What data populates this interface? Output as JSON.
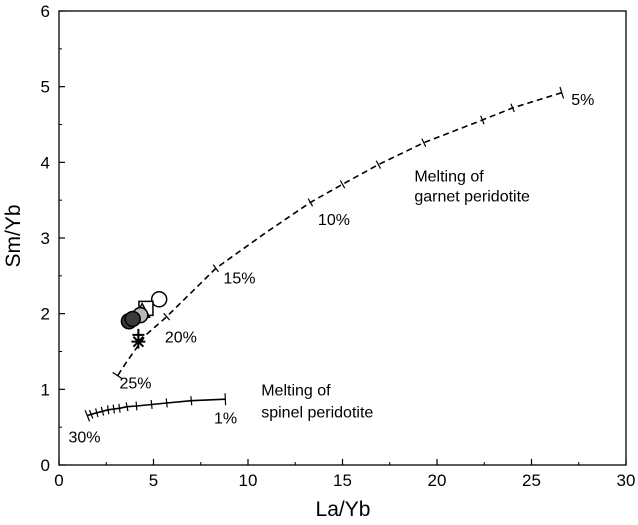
{
  "chart_data": {
    "type": "scatter",
    "title": "",
    "xlabel": "La/Yb",
    "ylabel": "Sm/Yb",
    "xlim": [
      0,
      30
    ],
    "ylim": [
      0,
      6
    ],
    "xticks": [
      "0",
      "5",
      "10",
      "15",
      "20",
      "25",
      "30"
    ],
    "yticks": [
      "0",
      "1",
      "2",
      "3",
      "4",
      "5",
      "6"
    ],
    "grid": false,
    "legend": "none",
    "curves": [
      {
        "id": "garnet",
        "style": "dashed",
        "color": "#000000",
        "points": [
          [
            26.6,
            4.92
          ],
          [
            24.0,
            4.72
          ],
          [
            22.4,
            4.56
          ],
          [
            19.3,
            4.26
          ],
          [
            16.9,
            3.97
          ],
          [
            15.0,
            3.71
          ],
          [
            13.3,
            3.47
          ],
          [
            11.0,
            3.08
          ],
          [
            8.3,
            2.6
          ],
          [
            5.7,
            1.96
          ],
          [
            4.6,
            1.72
          ],
          [
            3.6,
            1.37
          ],
          [
            3.1,
            1.18
          ]
        ],
        "ticks_at": [
          [
            24.0,
            4.72
          ],
          [
            22.4,
            4.56
          ],
          [
            19.3,
            4.26
          ],
          [
            16.9,
            3.97
          ],
          [
            15.0,
            3.71
          ],
          [
            13.3,
            3.47
          ],
          [
            8.3,
            2.6
          ],
          [
            5.7,
            1.96
          ]
        ],
        "end_ticks": [
          [
            26.6,
            4.92
          ],
          [
            3.1,
            1.18
          ]
        ]
      },
      {
        "id": "spinel",
        "style": "solid",
        "color": "#000000",
        "points": [
          [
            8.8,
            0.87
          ],
          [
            7.0,
            0.85
          ],
          [
            5.7,
            0.82
          ],
          [
            4.9,
            0.8
          ],
          [
            4.1,
            0.78
          ],
          [
            3.6,
            0.77
          ],
          [
            3.2,
            0.75
          ],
          [
            2.9,
            0.74
          ],
          [
            2.6,
            0.73
          ],
          [
            2.3,
            0.71
          ],
          [
            2.0,
            0.69
          ],
          [
            1.7,
            0.67
          ],
          [
            1.5,
            0.65
          ]
        ],
        "ticks_at": [
          [
            7.0,
            0.85
          ],
          [
            5.7,
            0.82
          ],
          [
            4.9,
            0.8
          ],
          [
            4.1,
            0.78
          ],
          [
            3.6,
            0.77
          ],
          [
            3.2,
            0.75
          ],
          [
            2.9,
            0.74
          ],
          [
            2.6,
            0.73
          ],
          [
            2.3,
            0.71
          ],
          [
            2.0,
            0.69
          ],
          [
            1.7,
            0.67
          ]
        ],
        "end_ticks": [
          [
            8.8,
            0.87
          ],
          [
            1.5,
            0.65
          ]
        ]
      }
    ],
    "annotations": [
      {
        "text": "5%",
        "x": 27.1,
        "y": 4.76
      },
      {
        "text": "10%",
        "x": 13.7,
        "y": 3.17
      },
      {
        "text": "15%",
        "x": 8.7,
        "y": 2.4
      },
      {
        "text": "20%",
        "x": 5.6,
        "y": 1.62
      },
      {
        "text": "25%",
        "x": 3.2,
        "y": 1.01
      },
      {
        "text": "1%",
        "x": 8.2,
        "y": 0.55
      },
      {
        "text": "30%",
        "x": 0.5,
        "y": 0.3
      },
      {
        "text": "Melting of",
        "x": 18.8,
        "y": 3.75
      },
      {
        "text": "garnet peridotite",
        "x": 18.8,
        "y": 3.48
      },
      {
        "text": "Melting of",
        "x": 10.7,
        "y": 0.92
      },
      {
        "text": "spinel peridotite",
        "x": 10.7,
        "y": 0.63
      }
    ],
    "series": [
      {
        "marker": "circle",
        "fill": "#ffffff",
        "points": [
          [
            5.3,
            2.19
          ]
        ]
      },
      {
        "marker": "square",
        "fill": "#ffffff",
        "points": [
          [
            4.6,
            2.07
          ]
        ]
      },
      {
        "marker": "triangle",
        "fill": "#b0b0b0",
        "points": [
          [
            4.4,
            2.03
          ]
        ]
      },
      {
        "marker": "circle",
        "fill": "#b8b8b8",
        "points": [
          [
            4.3,
            1.98
          ]
        ]
      },
      {
        "marker": "circle",
        "fill": "#3a3a3a",
        "points": [
          [
            3.7,
            1.9
          ],
          [
            3.9,
            1.93
          ]
        ]
      },
      {
        "marker": "cross",
        "fill": "#000000",
        "points": [
          [
            4.2,
            1.72
          ]
        ]
      },
      {
        "marker": "asterisk",
        "fill": "#000000",
        "points": [
          [
            4.2,
            1.63
          ]
        ]
      }
    ]
  }
}
